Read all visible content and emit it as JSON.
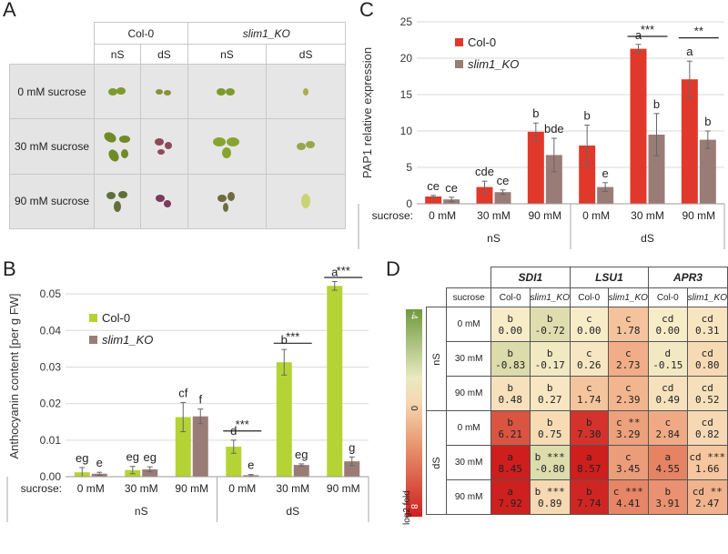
{
  "panelA": {
    "letter": "A",
    "genotypes": [
      "Col-0",
      "slim1_KO"
    ],
    "conditions": [
      "nS",
      "dS",
      "nS",
      "dS"
    ],
    "rows": [
      "0 mM sucrose",
      "30 mM sucrose",
      "90 mM sucrose"
    ]
  },
  "panelB": {
    "letter": "B"
  },
  "panelC": {
    "letter": "C"
  },
  "panelD": {
    "letter": "D",
    "genes": [
      "SDI1",
      "LSU1",
      "APR3"
    ],
    "sucrose_label": "sucrose",
    "genotypes": [
      "Col-0",
      "slim1_KO"
    ],
    "groups": [
      "nS",
      "dS"
    ],
    "row_labels": [
      "0 mM",
      "30 mM",
      "90 mM"
    ],
    "scale": {
      "top": "-4",
      "mid": "0",
      "bottom": "8",
      "label": "log2 fold"
    },
    "rows": [
      {
        "group": "nS",
        "sucrose": "0 mM",
        "cells": [
          {
            "l": "b",
            "v": "0.00",
            "n": 0.0
          },
          {
            "l": "b",
            "v": "-0.72",
            "n": -0.72
          },
          {
            "l": "c",
            "v": "0.00",
            "n": 0.0
          },
          {
            "l": "c",
            "v": "1.78",
            "n": 1.78
          },
          {
            "l": "cd",
            "v": "0.00",
            "n": 0.0
          },
          {
            "l": "cd",
            "v": "0.31",
            "n": 0.31
          }
        ]
      },
      {
        "group": "nS",
        "sucrose": "30 mM",
        "cells": [
          {
            "l": "b",
            "v": "-0.83",
            "n": -0.83
          },
          {
            "l": "b",
            "v": "-0.17",
            "n": -0.17
          },
          {
            "l": "c",
            "v": "0.26",
            "n": 0.26
          },
          {
            "l": "c",
            "v": "2.73",
            "n": 2.73
          },
          {
            "l": "d",
            "v": "-0.15",
            "n": -0.15
          },
          {
            "l": "cd",
            "v": "0.80",
            "n": 0.8
          }
        ]
      },
      {
        "group": "nS",
        "sucrose": "90 mM",
        "cells": [
          {
            "l": "b",
            "v": "0.48",
            "n": 0.48
          },
          {
            "l": "b",
            "v": "0.27",
            "n": 0.27
          },
          {
            "l": "c",
            "v": "1.74",
            "n": 1.74
          },
          {
            "l": "c",
            "v": "2.39",
            "n": 2.39
          },
          {
            "l": "cd",
            "v": "0.49",
            "n": 0.49
          },
          {
            "l": "cd",
            "v": "0.52",
            "n": 0.52
          }
        ]
      },
      {
        "group": "dS",
        "sucrose": "0 mM",
        "cells": [
          {
            "l": "b",
            "v": "6.21",
            "n": 6.21
          },
          {
            "l": "b",
            "v": "0.75",
            "n": 0.75
          },
          {
            "l": "b",
            "v": "7.30",
            "n": 7.3
          },
          {
            "l": "c **",
            "v": "3.29",
            "n": 3.29
          },
          {
            "l": "c",
            "v": "2.84",
            "n": 2.84
          },
          {
            "l": "cd",
            "v": "0.82",
            "n": 0.82
          }
        ]
      },
      {
        "group": "dS",
        "sucrose": "30 mM",
        "cells": [
          {
            "l": "a",
            "v": "8.45",
            "n": 8.45
          },
          {
            "l": "b ***",
            "v": "-0.80",
            "n": -0.8
          },
          {
            "l": "a",
            "v": "8.57",
            "n": 8.57
          },
          {
            "l": "c",
            "v": "3.45",
            "n": 3.45
          },
          {
            "l": "a",
            "v": "4.55",
            "n": 4.55
          },
          {
            "l": "cd ***",
            "v": "1.66",
            "n": 1.66
          }
        ]
      },
      {
        "group": "dS",
        "sucrose": "90 mM",
        "cells": [
          {
            "l": "a",
            "v": "7.92",
            "n": 7.92
          },
          {
            "l": "b ***",
            "v": "0.89",
            "n": 0.89
          },
          {
            "l": "b",
            "v": "7.74",
            "n": 7.74
          },
          {
            "l": "c ***",
            "v": "4.41",
            "n": 4.41
          },
          {
            "l": "b",
            "v": "3.91",
            "n": 3.91
          },
          {
            "l": "cd **",
            "v": "2.47",
            "n": 2.47
          }
        ]
      }
    ]
  },
  "colors": {
    "col0_B": "#b5d334",
    "slim_B": "#9a7c77",
    "col0_C": "#e0392c",
    "slim_C": "#9a7c77"
  },
  "chart_data": [
    {
      "id": "B",
      "type": "bar",
      "ylabel": "Anthocyanin content [per g FW]",
      "ylim": [
        0,
        0.055
      ],
      "yticks": [
        "0.00",
        "0.01",
        "0.02",
        "0.03",
        "0.04",
        "0.05"
      ],
      "ytick_vals": [
        0,
        0.01,
        0.02,
        0.03,
        0.04,
        0.05
      ],
      "sucrose_label": "sucrose:",
      "categories": [
        "0 mM",
        "30 mM",
        "90 mM",
        "0 mM",
        "30 mM",
        "90 mM"
      ],
      "groups": [
        "nS",
        "dS"
      ],
      "legend": [
        "Col-0",
        "slim1_KO"
      ],
      "series": [
        {
          "name": "Col-0",
          "values": [
            0.0012,
            0.0018,
            0.0163,
            0.0082,
            0.0313,
            0.0522
          ],
          "errors": [
            0.0013,
            0.001,
            0.004,
            0.0018,
            0.0035,
            0.0012
          ],
          "letters": [
            "eg",
            "eg",
            "cf",
            "d",
            "b",
            "a"
          ]
        },
        {
          "name": "slim1_KO",
          "values": [
            0.0008,
            0.002,
            0.0165,
            0.0004,
            0.0032,
            0.0042
          ],
          "errors": [
            0.0004,
            0.0007,
            0.002,
            0.0002,
            0.0003,
            0.0012
          ],
          "letters": [
            "e",
            "eg",
            "f",
            "e",
            "eg",
            "g"
          ]
        }
      ],
      "sig": [
        "***",
        "***",
        "***"
      ]
    },
    {
      "id": "C",
      "type": "bar",
      "ylabel": "PAP1 relative expression",
      "ylim": [
        0,
        25
      ],
      "yticks": [
        "0",
        "5",
        "10",
        "15",
        "20",
        "25"
      ],
      "ytick_vals": [
        0,
        5,
        10,
        15,
        20,
        25
      ],
      "sucrose_label": "sucrose:",
      "categories": [
        "0 mM",
        "30 mM",
        "90 mM",
        "0 mM",
        "30 mM",
        "90 mM"
      ],
      "groups": [
        "nS",
        "dS"
      ],
      "legend": [
        "Col-0",
        "slim1_KO"
      ],
      "series": [
        {
          "name": "Col-0",
          "values": [
            1.0,
            2.3,
            9.9,
            8.0,
            21.3,
            17.1
          ],
          "errors": [
            0.15,
            0.8,
            1.2,
            2.8,
            0.6,
            2.5
          ],
          "letters": [
            "ce",
            "cde",
            "b",
            "b",
            "a",
            "a"
          ]
        },
        {
          "name": "slim1_KO",
          "values": [
            0.6,
            1.6,
            6.7,
            2.3,
            9.5,
            8.8
          ],
          "errors": [
            0.3,
            0.3,
            2.3,
            0.6,
            2.9,
            1.2
          ],
          "letters": [
            "ce",
            "ce",
            "bde",
            "e",
            "b",
            "b"
          ]
        }
      ],
      "sig": [
        "***",
        "**"
      ]
    }
  ]
}
